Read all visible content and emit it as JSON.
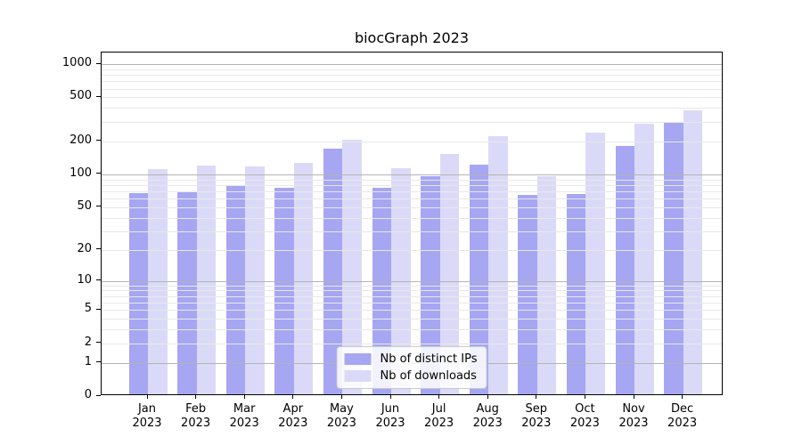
{
  "chart_data": {
    "type": "bar",
    "title": "biocGraph 2023",
    "categories": [
      "Jan",
      "Feb",
      "Mar",
      "Apr",
      "May",
      "Jun",
      "Jul",
      "Aug",
      "Sep",
      "Oct",
      "Nov",
      "Dec"
    ],
    "category_sub": "2023",
    "series": [
      {
        "name": "Nb of distinct IPs",
        "color": "#a6a6f2",
        "values": [
          65,
          67,
          76,
          73,
          165,
          72,
          92,
          118,
          62,
          64,
          176,
          290
        ]
      },
      {
        "name": "Nb of downloads",
        "color": "#dadaf8",
        "values": [
          108,
          116,
          113,
          122,
          199,
          110,
          149,
          215,
          92,
          230,
          280,
          368
        ]
      }
    ],
    "y_ticks": [
      1000,
      500,
      200,
      100,
      50,
      20,
      10,
      5,
      2,
      1,
      0
    ],
    "y_scale": "log10(value+1)",
    "ylim": [
      0,
      1275
    ],
    "grid": {
      "major": [
        1,
        10,
        100,
        1000
      ],
      "minor": [
        2,
        3,
        4,
        5,
        6,
        7,
        8,
        9,
        20,
        30,
        40,
        50,
        60,
        70,
        80,
        90,
        200,
        300,
        400,
        500,
        600,
        700,
        800,
        900
      ]
    },
    "legend_position": "lower center",
    "colors": {
      "major_grid": "#b3b3b3",
      "minor_grid": "#e8e8e8",
      "axis": "#000000",
      "background": "#ffffff"
    }
  }
}
